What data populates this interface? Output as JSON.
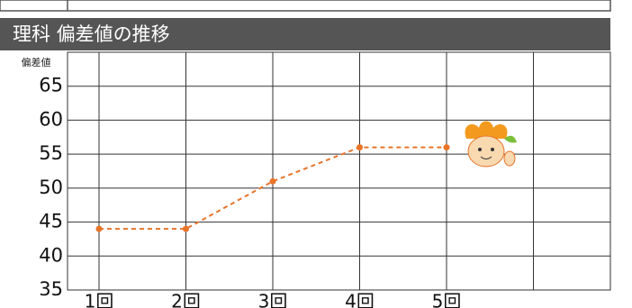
{
  "chart_data": {
    "type": "line",
    "header": "理科 偏差値の推移",
    "y_label": "偏差値",
    "categories": [
      "1回",
      "2回",
      "3回",
      "4回",
      "5回"
    ],
    "series": [
      {
        "color": "#e8742a",
        "values": [
          44,
          44,
          51,
          56,
          56
        ]
      }
    ],
    "ylim": [
      35,
      70
    ],
    "yticks": [
      35,
      40,
      45,
      50,
      55,
      60,
      65
    ],
    "grid": true
  }
}
